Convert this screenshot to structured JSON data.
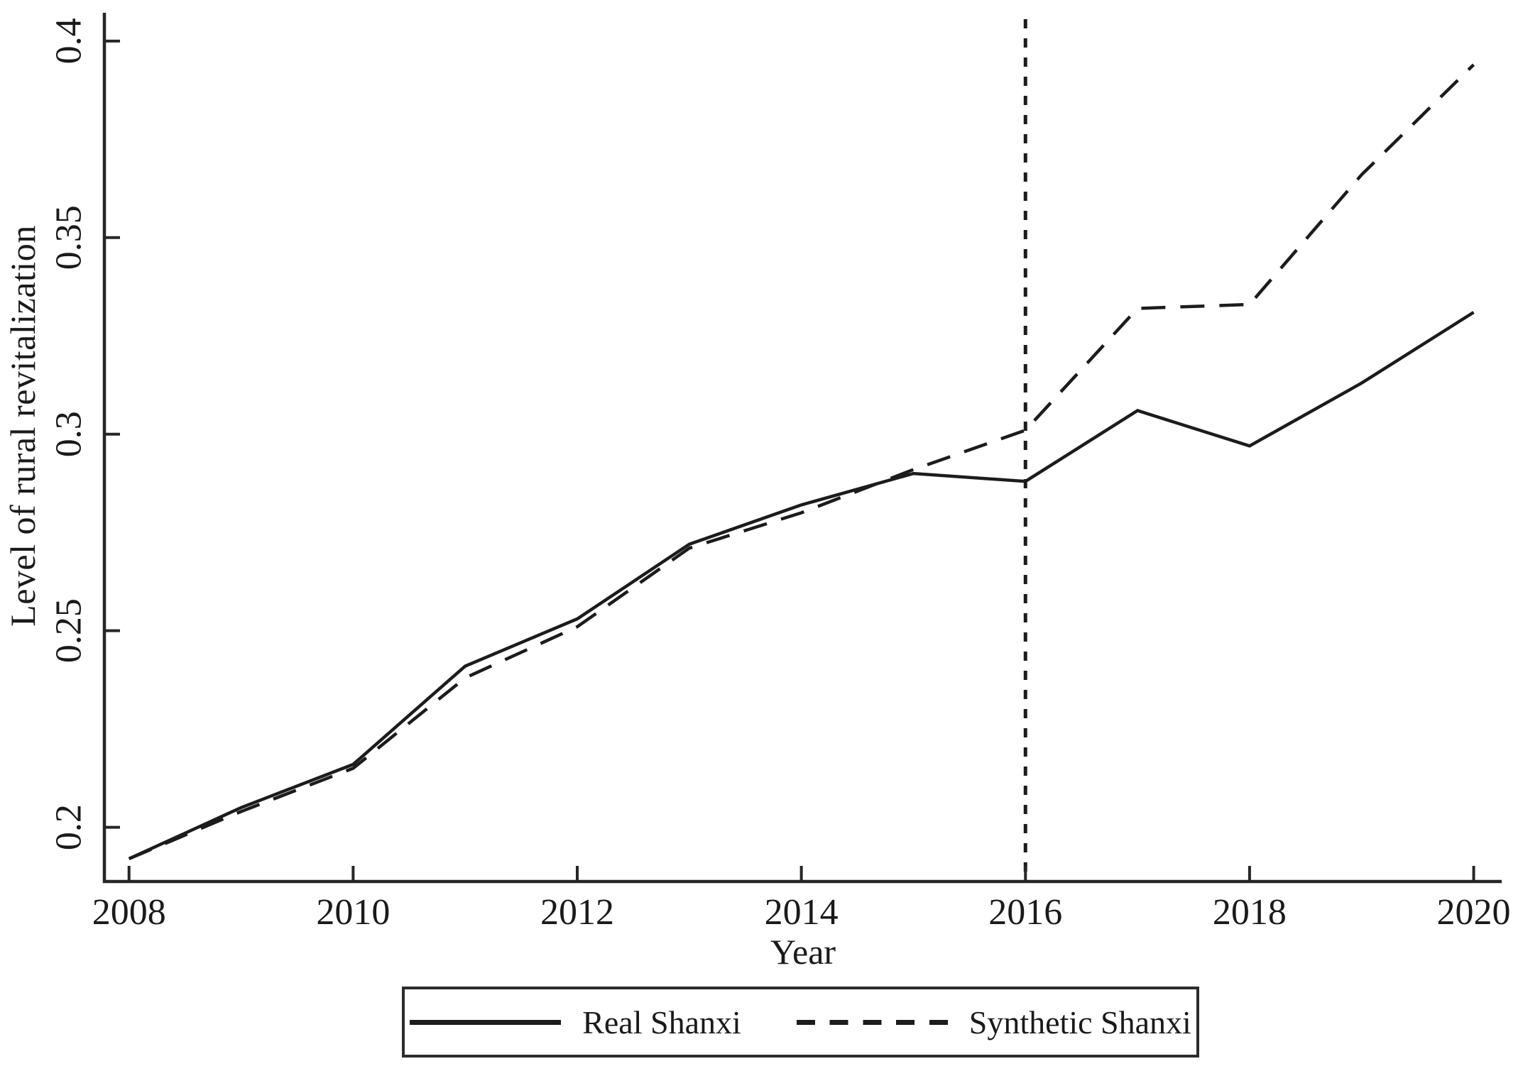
{
  "colors": {
    "ink": "#1a1a1a",
    "line": "#1c1c1c",
    "background": "#ffffff"
  },
  "chart_data": {
    "type": "line",
    "title": "",
    "xlabel": "Year",
    "ylabel": "Level of rural revitalization",
    "x": [
      2008,
      2009,
      2010,
      2011,
      2012,
      2013,
      2014,
      2015,
      2016,
      2017,
      2018,
      2019,
      2020
    ],
    "series": [
      {
        "name": "Real Shanxi",
        "style": "solid",
        "values": [
          0.192,
          0.205,
          0.216,
          0.241,
          0.253,
          0.272,
          0.282,
          0.29,
          0.288,
          0.306,
          0.297,
          0.313,
          0.331
        ]
      },
      {
        "name": "Synthetic Shanxi",
        "style": "dashed",
        "values": [
          0.192,
          0.204,
          0.215,
          0.238,
          0.251,
          0.271,
          0.28,
          0.291,
          0.301,
          0.332,
          0.333,
          0.366,
          0.394
        ]
      }
    ],
    "x_ticks": [
      2008,
      2010,
      2012,
      2014,
      2016,
      2018,
      2020
    ],
    "x_tick_labels": [
      "2008",
      "2010",
      "2012",
      "2014",
      "2016",
      "2018",
      "2020"
    ],
    "y_ticks": [
      0.2,
      0.25,
      0.3,
      0.35,
      0.4
    ],
    "y_tick_labels": [
      "0.2",
      "0.25",
      "0.3",
      "0.35",
      "0.4"
    ],
    "xlim": [
      2007.78,
      2020.25
    ],
    "ylim": [
      0.1862,
      0.4072
    ],
    "vline": {
      "x": 2016,
      "style": "dotted"
    },
    "grid": false,
    "legend": {
      "position": "bottom",
      "entries": [
        "Real Shanxi",
        "Synthetic Shanxi"
      ]
    }
  }
}
